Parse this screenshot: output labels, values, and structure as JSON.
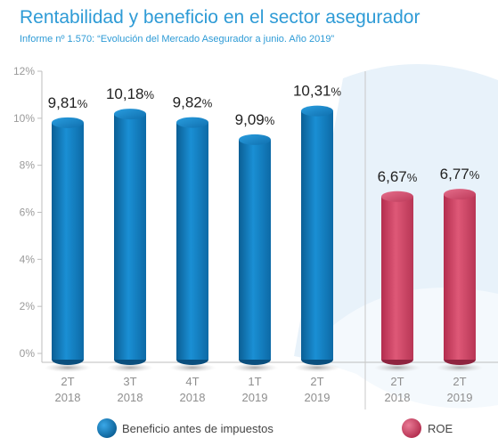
{
  "header": {
    "title": "Rentabilidad y beneficio en el sector asegurador",
    "subtitle": "Informe nº 1.570: “Evolución del Mercado Asegurador a junio. Año 2019”"
  },
  "colors": {
    "accent": "#2e9bd6",
    "series_blue": "#1a86c9",
    "series_pink": "#cc4062",
    "background_shape": "#e6f1f9"
  },
  "chart_data": {
    "type": "bar",
    "title": "Rentabilidad y beneficio en el sector asegurador",
    "subtitle": "Informe nº 1.570: “Evolución del Mercado Asegurador a junio. Año 2019”",
    "ylim": [
      0,
      12
    ],
    "yticks": [
      "0%",
      "2%",
      "4%",
      "6%",
      "8%",
      "10%",
      "12%"
    ],
    "grid": false,
    "legend_position": "bottom",
    "groups": [
      {
        "series": "Beneficio antes de impuestos",
        "categories": [
          [
            "2T",
            "2018"
          ],
          [
            "3T",
            "2018"
          ],
          [
            "4T",
            "2018"
          ],
          [
            "1T",
            "2019"
          ],
          [
            "2T",
            "2019"
          ]
        ],
        "values": [
          9.81,
          10.18,
          9.82,
          9.09,
          10.31
        ],
        "labels": [
          "9,81",
          "10,18",
          "9,82",
          "9,09",
          "10,31"
        ]
      },
      {
        "series": "ROE",
        "categories": [
          [
            "2T",
            "2018"
          ],
          [
            "2T",
            "2019"
          ]
        ],
        "values": [
          6.67,
          6.77
        ],
        "labels": [
          "6,67",
          "6,77"
        ]
      }
    ],
    "value_suffix": "%",
    "legend": [
      "Beneficio antes de impuestos",
      "ROE"
    ]
  }
}
